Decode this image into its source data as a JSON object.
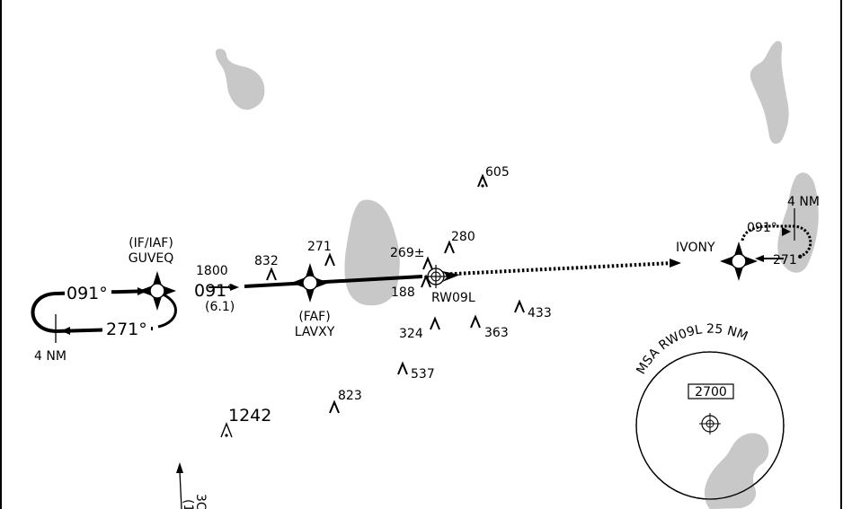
{
  "fixes": {
    "guveq": {
      "role": "(IF/IAF)",
      "name": "GUVEQ"
    },
    "lavxy": {
      "role": "(FAF)",
      "name": "LAVXY"
    },
    "ivony": {
      "name": "IVONY"
    }
  },
  "runway": {
    "label": "RW09L"
  },
  "approach": {
    "altitude": "1800",
    "course": "091°",
    "distance": "(6.1)"
  },
  "holding_west": {
    "inbound": "091°",
    "outbound": "271°",
    "leg": "4 NM"
  },
  "holding_east": {
    "inbound": "091°",
    "outbound": "271°",
    "leg": "4 NM"
  },
  "obstacles": [
    {
      "id": "605",
      "label": "605"
    },
    {
      "id": "280",
      "label": "280"
    },
    {
      "id": "269",
      "label": "269±"
    },
    {
      "id": "271",
      "label": "271"
    },
    {
      "id": "832",
      "label": "832"
    },
    {
      "id": "188",
      "label": "188"
    },
    {
      "id": "433",
      "label": "433"
    },
    {
      "id": "324",
      "label": "324"
    },
    {
      "id": "363",
      "label": "363"
    },
    {
      "id": "537",
      "label": "537"
    },
    {
      "id": "823",
      "label": "823"
    },
    {
      "id": "1242",
      "label": "1242"
    }
  ],
  "msa": {
    "title": "MSA RW09L 25 NM",
    "altitude": "2700"
  },
  "partial_label": {
    "line1": "3C",
    "line2": "(1"
  },
  "colors": {
    "water": "#c8c8c8",
    "ink": "#000000"
  }
}
